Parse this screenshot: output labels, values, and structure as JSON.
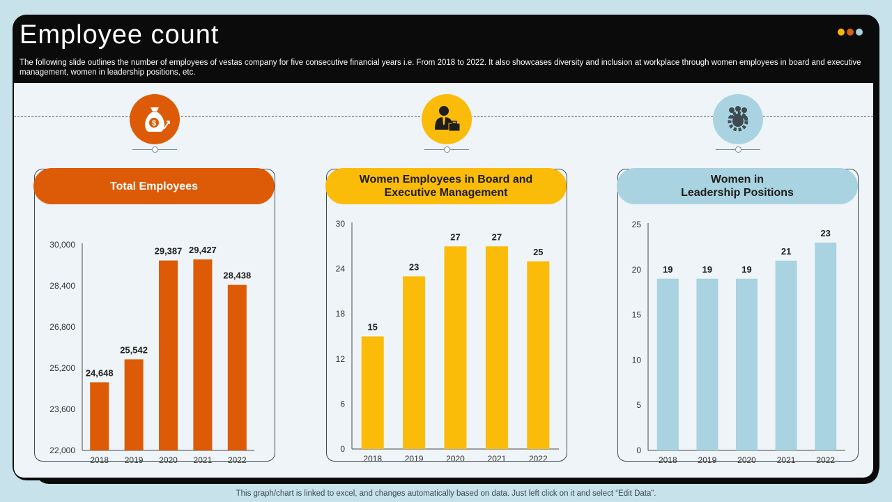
{
  "header": {
    "title": "Employee count",
    "subtitle": "The following slide outlines the number of employees of vestas company for five  consecutive financial years i.e. From 2018 to  2022. It  also showcases diversity and inclusion at workplace through women employees in board and executive  management, women in leadership positions, etc."
  },
  "decor_dots": [
    "#f5b50a",
    "#d9600e",
    "#a6d3e2"
  ],
  "panels": [
    {
      "title": "Total Employees",
      "icon": "money-bag-icon",
      "color": "#dd5b07",
      "text_color": "#ffffff",
      "circle_color": "#dd5b07"
    },
    {
      "title": "Women Employees in Board and\nExecutive Management",
      "icon": "businessperson-icon",
      "color": "#fbbb09",
      "text_color": "#1e1e1e",
      "circle_color": "#fbbb09"
    },
    {
      "title": "Women in\nLeadership Positions",
      "icon": "team-gear-icon",
      "color": "#a9d3e0",
      "text_color": "#1e1e1e",
      "circle_color": "#a9d3e0"
    }
  ],
  "chart_data": [
    {
      "type": "bar",
      "title": "Total Employees",
      "categories": [
        "2018",
        "2019",
        "2020",
        "2021",
        "2022"
      ],
      "values": [
        24648,
        25542,
        29387,
        29427,
        28438
      ],
      "value_labels": [
        "24,648",
        "25,542",
        "29,387",
        "29,427",
        "28,438"
      ],
      "ylim": [
        22000,
        30000
      ],
      "yticks": [
        22000,
        23600,
        25200,
        26800,
        28400,
        30000
      ],
      "ytick_labels": [
        "22,000",
        "23,600",
        "25,200",
        "26,800",
        "28,400",
        "30,000"
      ],
      "color": "#dd5b07"
    },
    {
      "type": "bar",
      "title": "Women Employees in Board and Executive Management",
      "categories": [
        "2018",
        "2019",
        "2020",
        "2021",
        "2022"
      ],
      "values": [
        15,
        23,
        27,
        27,
        25
      ],
      "value_labels": [
        "15",
        "23",
        "27",
        "27",
        "25"
      ],
      "ylim": [
        0,
        30
      ],
      "yticks": [
        0,
        6,
        12,
        18,
        24,
        30
      ],
      "ytick_labels": [
        "0",
        "6",
        "12",
        "18",
        "24",
        "30"
      ],
      "color": "#fbbb09"
    },
    {
      "type": "bar",
      "title": "Women in Leadership Positions",
      "categories": [
        "2018",
        "2019",
        "2020",
        "2021",
        "2022"
      ],
      "values": [
        19,
        19,
        19,
        21,
        23
      ],
      "value_labels": [
        "19",
        "19",
        "19",
        "21",
        "23"
      ],
      "ylim": [
        0,
        25
      ],
      "yticks": [
        0,
        5,
        10,
        15,
        20,
        25
      ],
      "ytick_labels": [
        "0",
        "5",
        "10",
        "15",
        "20",
        "25"
      ],
      "color": "#a9d3e0"
    }
  ],
  "footer": "This graph/chart is linked to excel,  and changes automatically based on data. Just left click on it and select “Edit Data”."
}
